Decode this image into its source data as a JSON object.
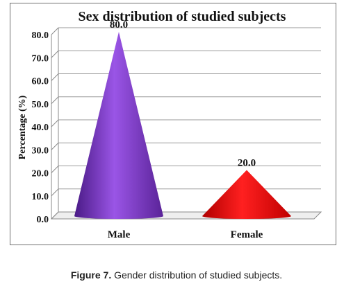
{
  "chart_data": {
    "type": "bar",
    "shape": "cone",
    "title": "Sex distribution of studied subjects",
    "ylabel": "Percentage (%)",
    "xlabel": "",
    "categories": [
      "Male",
      "Female"
    ],
    "values": [
      80.0,
      20.0
    ],
    "data_labels": [
      "80.0",
      "20.0"
    ],
    "ylim": [
      0,
      80
    ],
    "yticks": [
      0,
      10,
      20,
      30,
      40,
      50,
      60,
      70,
      80
    ],
    "ytick_labels": [
      "0.0",
      "10.0",
      "20.0",
      "30.0",
      "40.0",
      "50.0",
      "60.0",
      "70.0",
      "80.0"
    ],
    "grid": true,
    "legend": "none",
    "colors": [
      "#7b35c9",
      "#e01010"
    ]
  },
  "caption": {
    "label": "Figure 7.",
    "text": "Gender distribution of studied subjects."
  }
}
